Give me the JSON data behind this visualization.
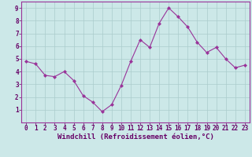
{
  "x": [
    0,
    1,
    2,
    3,
    4,
    5,
    6,
    7,
    8,
    9,
    10,
    11,
    12,
    13,
    14,
    15,
    16,
    17,
    18,
    19,
    20,
    21,
    22,
    23
  ],
  "y": [
    4.8,
    4.6,
    3.7,
    3.6,
    4.0,
    3.3,
    2.1,
    1.6,
    0.85,
    1.4,
    2.9,
    4.8,
    6.5,
    5.9,
    7.8,
    9.0,
    8.3,
    7.5,
    6.3,
    5.5,
    5.9,
    5.0,
    4.3,
    4.5
  ],
  "line_color": "#993399",
  "marker": "D",
  "marker_size": 2.0,
  "bg_color": "#cce8e8",
  "grid_color": "#aacccc",
  "ylim": [
    0,
    9.5
  ],
  "xlim": [
    -0.5,
    23.5
  ],
  "yticks": [
    1,
    2,
    3,
    4,
    5,
    6,
    7,
    8,
    9
  ],
  "xticks": [
    0,
    1,
    2,
    3,
    4,
    5,
    6,
    7,
    8,
    9,
    10,
    11,
    12,
    13,
    14,
    15,
    16,
    17,
    18,
    19,
    20,
    21,
    22,
    23
  ],
  "label_color": "#660066",
  "spine_color": "#993399",
  "tick_label_fontsize": 5.5,
  "xlabel": "Windchill (Refroidissement éolien,°C)",
  "xlabel_fontsize": 6.5,
  "linewidth": 0.8
}
